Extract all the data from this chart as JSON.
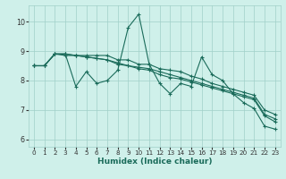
{
  "xlabel": "Humidex (Indice chaleur)",
  "background_color": "#cff0ea",
  "grid_color": "#a0cfc8",
  "line_color": "#1a6b5a",
  "xlim": [
    -0.5,
    23.5
  ],
  "ylim": [
    5.75,
    10.55
  ],
  "xticks": [
    0,
    1,
    2,
    3,
    4,
    5,
    6,
    7,
    8,
    9,
    10,
    11,
    12,
    13,
    14,
    15,
    16,
    17,
    18,
    19,
    20,
    21,
    22,
    23
  ],
  "yticks": [
    6,
    7,
    8,
    9,
    10
  ],
  "series": [
    [
      8.5,
      8.5,
      8.9,
      8.9,
      7.8,
      8.3,
      7.9,
      8.0,
      8.35,
      9.8,
      10.25,
      8.55,
      7.9,
      7.55,
      7.9,
      7.8,
      8.8,
      8.2,
      8.0,
      7.55,
      7.25,
      7.05,
      6.45,
      6.35
    ],
    [
      8.5,
      8.5,
      8.9,
      8.9,
      8.85,
      8.85,
      8.85,
      8.85,
      8.7,
      8.7,
      8.55,
      8.55,
      8.4,
      8.35,
      8.3,
      8.15,
      8.05,
      7.9,
      7.8,
      7.7,
      7.6,
      7.5,
      7.0,
      6.85
    ],
    [
      8.5,
      8.5,
      8.9,
      8.85,
      8.85,
      8.8,
      8.75,
      8.7,
      8.6,
      8.5,
      8.4,
      8.35,
      8.2,
      8.1,
      8.05,
      7.95,
      7.85,
      7.75,
      7.65,
      7.55,
      7.45,
      7.35,
      6.8,
      6.6
    ],
    [
      8.5,
      8.5,
      8.9,
      8.9,
      8.85,
      8.8,
      8.75,
      8.7,
      8.55,
      8.5,
      8.45,
      8.4,
      8.3,
      8.2,
      8.1,
      8.0,
      7.9,
      7.8,
      7.7,
      7.6,
      7.5,
      7.4,
      6.85,
      6.7
    ]
  ]
}
